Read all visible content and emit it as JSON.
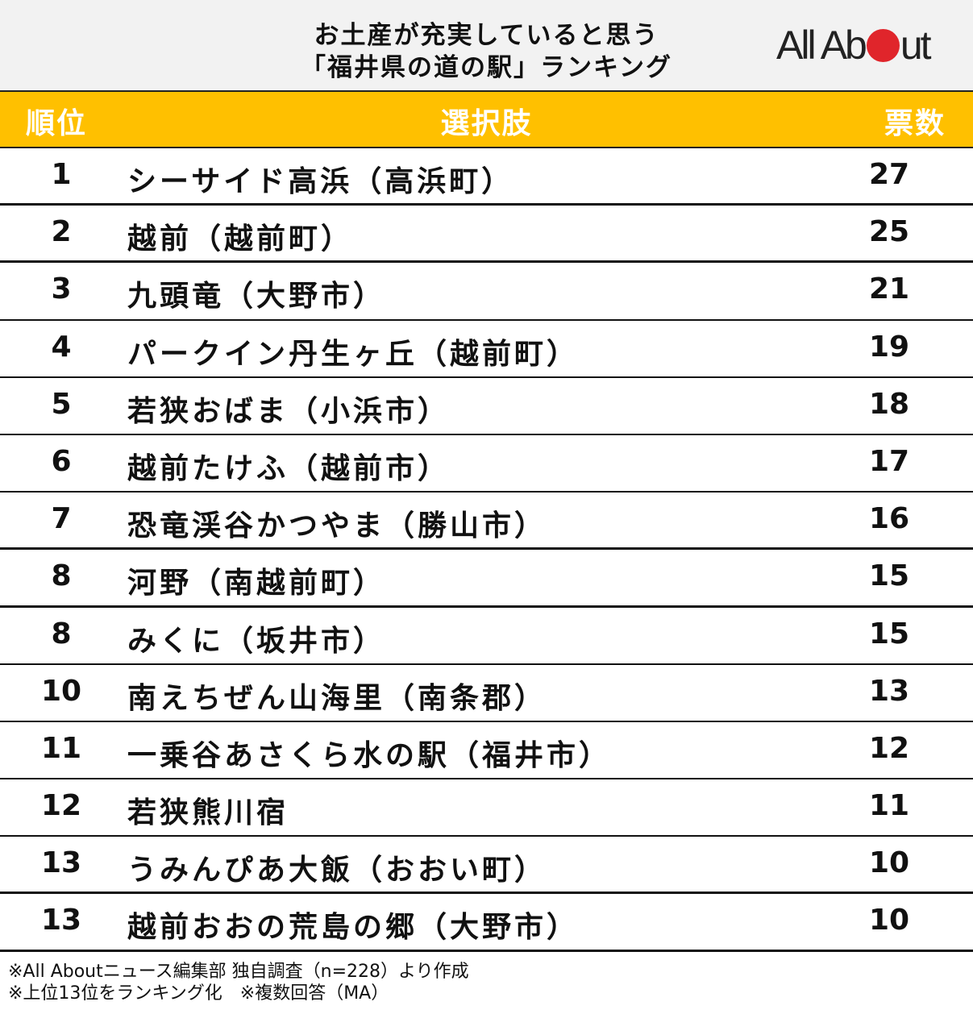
{
  "header": {
    "title_line1": "お土産が充実していると思う",
    "title_line2": "「福井県の道の駅」ランキング",
    "logo": {
      "text_before": "All Ab",
      "text_after": "ut",
      "dot_color": "#e0252b"
    }
  },
  "table": {
    "columns": [
      "順位",
      "選択肢",
      "票数"
    ],
    "header_color": "#ffc000",
    "rows": [
      {
        "rank": "1",
        "name": "シーサイド高浜（高浜町）",
        "votes": "27"
      },
      {
        "rank": "2",
        "name": "越前（越前町）",
        "votes": "25"
      },
      {
        "rank": "3",
        "name": "九頭竜（大野市）",
        "votes": "21"
      },
      {
        "rank": "4",
        "name": "パークイン丹生ヶ丘（越前町）",
        "votes": "19"
      },
      {
        "rank": "5",
        "name": "若狭おばま（小浜市）",
        "votes": "18"
      },
      {
        "rank": "6",
        "name": "越前たけふ（越前市）",
        "votes": "17"
      },
      {
        "rank": "7",
        "name": "恐竜渓谷かつやま（勝山市）",
        "votes": "16"
      },
      {
        "rank": "8",
        "name": "河野（南越前町）",
        "votes": "15"
      },
      {
        "rank": "8",
        "name": "みくに（坂井市）",
        "votes": "15"
      },
      {
        "rank": "10",
        "name": "南えちぜん山海里（南条郡）",
        "votes": "13"
      },
      {
        "rank": "11",
        "name": "一乗谷あさくら水の駅（福井市）",
        "votes": "12"
      },
      {
        "rank": "12",
        "name": "若狭熊川宿",
        "votes": "11"
      },
      {
        "rank": "13",
        "name": "うみんぴあ大飯（おおい町）",
        "votes": "10"
      },
      {
        "rank": "13",
        "name": "越前おおの荒島の郷（大野市）",
        "votes": "10"
      }
    ]
  },
  "notes": {
    "line1": "※All Aboutニュース編集部 独自調査（n=228）より作成",
    "line2": "※上位13位をランキング化　※複数回答（MA）"
  },
  "chart_data": {
    "type": "table",
    "title": "お土産が充実していると思う「福井県の道の駅」ランキング",
    "columns": [
      "順位",
      "選択肢",
      "票数"
    ],
    "categories": [
      "シーサイド高浜（高浜町）",
      "越前（越前町）",
      "九頭竜（大野市）",
      "パークイン丹生ヶ丘（越前町）",
      "若狭おばま（小浜市）",
      "越前たけふ（越前市）",
      "恐竜渓谷かつやま（勝山市）",
      "河野（南越前町）",
      "みくに（坂井市）",
      "南えちぜん山海里（南条郡）",
      "一乗谷あさくら水の駅（福井市）",
      "若狭熊川宿",
      "うみんぴあ大飯（おおい町）",
      "越前おおの荒島の郷（大野市）"
    ],
    "ranks": [
      1,
      2,
      3,
      4,
      5,
      6,
      7,
      8,
      8,
      10,
      11,
      12,
      13,
      13
    ],
    "values": [
      27,
      25,
      21,
      19,
      18,
      17,
      16,
      15,
      15,
      13,
      12,
      11,
      10,
      10
    ],
    "sample_size": 228,
    "source": "※All Aboutニュース編集部 独自調査（n=228）より作成"
  }
}
